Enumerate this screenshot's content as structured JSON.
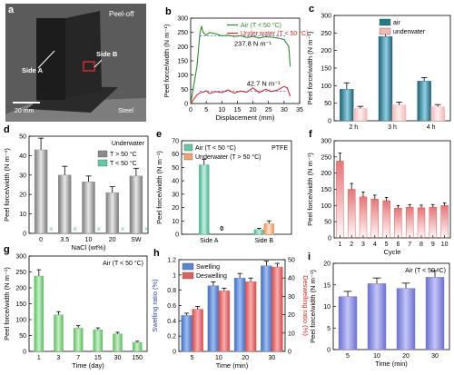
{
  "photo": {
    "panel_letter": "a",
    "labels": [
      "Peel-off",
      "Side A",
      "Side B",
      "Steel"
    ],
    "scale_bar": "20 mm",
    "colors": {
      "bg": "#5a5a5a",
      "sample": "#1e1e1e",
      "steel": "#8a8a8a",
      "marker": "#d42a2a"
    }
  },
  "chart_data": [
    {
      "id": "b",
      "panel_letter": "b",
      "type": "line",
      "xlabel": "Displacement (mm)",
      "ylabel": "Peel force/width (N m⁻¹)",
      "xlim": [
        0,
        35
      ],
      "ylim": [
        0,
        300
      ],
      "xticks": [
        0,
        5,
        10,
        15,
        20,
        25,
        30,
        35
      ],
      "yticks": [
        0,
        50,
        100,
        150,
        200,
        250,
        300
      ],
      "series": [
        {
          "name": "Air (T < 50 °C)",
          "color": "#2f8a2f",
          "x": [
            0,
            2,
            3,
            3.5,
            4,
            5,
            6,
            8,
            10,
            12,
            14,
            16,
            18,
            20,
            22,
            24,
            26,
            28,
            30,
            31.5,
            32
          ],
          "y": [
            0,
            130,
            250,
            272,
            250,
            240,
            250,
            245,
            238,
            240,
            236,
            238,
            232,
            236,
            230,
            235,
            233,
            230,
            225,
            200,
            130
          ]
        },
        {
          "name": "Under water (T < 50 °C)",
          "color": "#d42a2a",
          "x": [
            0,
            1,
            2,
            3,
            4,
            5,
            6,
            8,
            10,
            12,
            14,
            16,
            18,
            20,
            22,
            24,
            26,
            28,
            30,
            31,
            32
          ],
          "y": [
            0,
            15,
            30,
            38,
            40,
            45,
            35,
            42,
            38,
            48,
            36,
            44,
            40,
            55,
            38,
            50,
            42,
            48,
            60,
            55,
            25
          ]
        }
      ],
      "annotations": [
        "237.8 N m⁻¹",
        "42.7 N m⁻¹"
      ],
      "ref_lines": [
        {
          "y": 237.8,
          "color": "#3b5bd6"
        },
        {
          "y": 42.7,
          "color": "#3b5bd6"
        }
      ]
    },
    {
      "id": "c",
      "panel_letter": "c",
      "type": "bar",
      "categories": [
        "2 h",
        "3 h",
        "4 h"
      ],
      "ylabel": "Peel force/width (N m⁻¹)",
      "ylim": [
        0,
        300
      ],
      "yticks": [
        0,
        50,
        100,
        150,
        200,
        250,
        300
      ],
      "series": [
        {
          "name": "air",
          "color": "#1f7a8c",
          "values": [
            90,
            240,
            113
          ],
          "errors": [
            18,
            22,
            10
          ]
        },
        {
          "name": "underwater",
          "color": "#f4b6b6",
          "values": [
            35,
            45,
            40
          ],
          "errors": [
            6,
            8,
            6
          ]
        }
      ]
    },
    {
      "id": "d",
      "panel_letter": "d",
      "type": "bar",
      "title": "Underwater",
      "categories": [
        "0",
        "3.5",
        "10",
        "20",
        "SW"
      ],
      "xlabel": "NaCl (wt%)",
      "ylabel": "Peel force/width (N m⁻¹)",
      "ylim": [
        0,
        50
      ],
      "yticks": [
        0,
        10,
        20,
        30,
        40,
        50
      ],
      "series": [
        {
          "name": "T > 50 °C",
          "color": "#8c8c8c",
          "values": [
            43,
            30,
            26.5,
            21,
            29.5
          ],
          "errors": [
            6,
            4.5,
            3,
            3,
            4
          ]
        },
        {
          "name": "T < 50 °C",
          "color": "#63c9a7",
          "values": [
            0,
            0,
            0,
            0,
            0
          ],
          "marker": "×"
        }
      ]
    },
    {
      "id": "e",
      "panel_letter": "e",
      "type": "bar",
      "title": "PTFE",
      "categories": [
        "Side A",
        "Side B"
      ],
      "ylabel": "Peel force/width (N m⁻¹)",
      "ylim": [
        0,
        70
      ],
      "yticks": [
        0,
        10,
        20,
        30,
        40,
        50,
        60,
        70
      ],
      "series": [
        {
          "name": "Air (T < 50 °C)",
          "color": "#63c9a7",
          "values": [
            52,
            3.5
          ],
          "errors": [
            4,
            1
          ]
        },
        {
          "name": "Underwater (T > 50 °C)",
          "color": "#f2a36b",
          "values": [
            0,
            8
          ],
          "errors": [
            0,
            2
          ]
        }
      ],
      "annotations": [
        "0"
      ]
    },
    {
      "id": "f",
      "panel_letter": "f",
      "type": "bar",
      "categories": [
        "1",
        "2",
        "3",
        "4",
        "5",
        "6",
        "7",
        "8",
        "9",
        "10"
      ],
      "xlabel": "Cycle",
      "ylabel": "Peel force/width (N m⁻¹)",
      "ylim": [
        0,
        300
      ],
      "yticks": [
        0,
        50,
        100,
        150,
        200,
        250,
        300
      ],
      "series": [
        {
          "name": "",
          "color": "#e04848",
          "values": [
            237,
            150,
            127,
            120,
            115,
            92,
            95,
            93,
            95,
            100
          ],
          "errors": [
            25,
            18,
            15,
            12,
            10,
            8,
            8,
            8,
            8,
            8
          ]
        }
      ]
    },
    {
      "id": "g",
      "panel_letter": "g",
      "type": "bar",
      "title": "Air (T < 50 °C)",
      "categories": [
        "1",
        "3",
        "7",
        "15",
        "30",
        "150"
      ],
      "xlabel": "Time (day)",
      "ylabel": "Peel force/width (N m⁻¹)",
      "ylim": [
        0,
        300
      ],
      "yticks": [
        0,
        50,
        100,
        150,
        200,
        250,
        300
      ],
      "series": [
        {
          "name": "",
          "color": "#5cbf5c",
          "values": [
            237,
            115,
            73,
            68,
            55,
            28
          ],
          "errors": [
            20,
            10,
            8,
            6,
            5,
            4
          ]
        }
      ]
    },
    {
      "id": "h",
      "panel_letter": "h",
      "type": "bar",
      "categories": [
        "5",
        "10",
        "20",
        "30"
      ],
      "xlabel": "Time (min)",
      "ylabel": "Swelling ratio (%)",
      "ylabel_right": "Deswelling ratio (%)",
      "ylim": [
        0,
        1.2
      ],
      "yticks": [
        0,
        0.2,
        0.4,
        0.6,
        0.8,
        1.0,
        1.2
      ],
      "ylim_right": [
        0,
        50
      ],
      "yticks_right": [
        0,
        10,
        20,
        30,
        40,
        50
      ],
      "series": [
        {
          "name": "Swelling",
          "axis": "left",
          "color": "#5b86d6",
          "values": [
            0.47,
            0.86,
            0.96,
            1.12
          ],
          "errors": [
            0.03,
            0.05,
            0.06,
            0.06
          ]
        },
        {
          "name": "Deswelling",
          "axis": "right",
          "color": "#e06060",
          "values": [
            23,
            33,
            38,
            46
          ],
          "errors": [
            1.5,
            1.5,
            2,
            2
          ]
        }
      ],
      "colors": {
        "left_axis": "#2f3fa8",
        "right_axis": "#d42a2a"
      }
    },
    {
      "id": "i",
      "panel_letter": "i",
      "type": "bar",
      "title": "Air (T < 50 °C)",
      "categories": [
        "5",
        "10",
        "20",
        "30"
      ],
      "xlabel": "Time (min)",
      "ylabel": "Peel force/width (N m⁻¹)",
      "ylim": [
        0,
        20
      ],
      "yticks": [
        0,
        5,
        10,
        15,
        20
      ],
      "series": [
        {
          "name": "",
          "color": "#7b7fde",
          "values": [
            12.3,
            15.3,
            14.2,
            16.8
          ],
          "errors": [
            1.2,
            1.3,
            1.2,
            1.5
          ]
        }
      ]
    }
  ]
}
